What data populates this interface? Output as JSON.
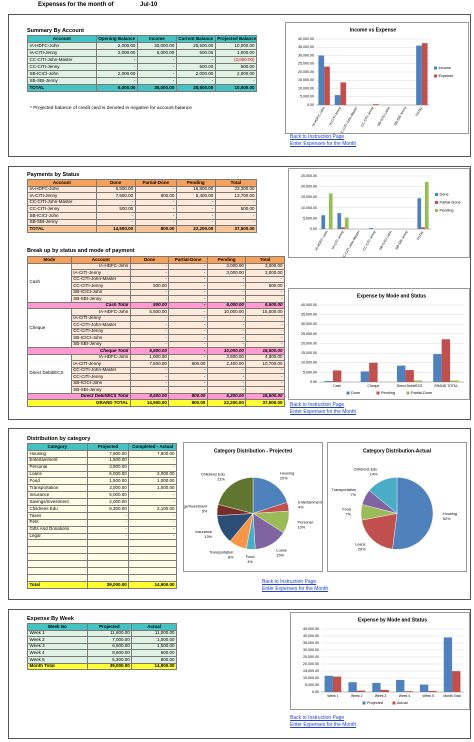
{
  "header": {
    "title": "Expenses for the month of",
    "month": "Jul-10"
  },
  "links": {
    "back": "Back to Instruction Page",
    "enter": "Enter Expenses for the Month"
  },
  "summary": {
    "title": "Summary By Account",
    "columns": [
      "Account",
      "Opening Balance",
      "Income",
      "Current Balance",
      "Projected Balance"
    ],
    "rows": [
      [
        "IA-HDFC-John",
        "2,000.00",
        "30,000.00",
        "25,500.00",
        "10,000.00"
      ],
      [
        "IA-CITI-Jenny",
        "2,000.00",
        "6,000.00",
        "500.00",
        "1,000.00"
      ],
      [
        "CC-CITI-John-Master",
        "-",
        "-",
        "-",
        "(3,000.00)"
      ],
      [
        "CC-CITI-Jenny",
        "-",
        "-",
        "500.00",
        "500.00"
      ],
      [
        "SB-ICICI-John",
        "2,000.00",
        "-",
        "2,000.00",
        "2,000.00"
      ],
      [
        "SB-SBI-Jenny",
        "-",
        "-",
        "-",
        "-"
      ]
    ],
    "total": [
      "TOTAL",
      "6,000.00",
      "36,000.00",
      "28,500.00",
      "10,500.00"
    ],
    "note": "* Projected balance of credit card is denoted in negative for account balance"
  },
  "payments": {
    "title": "Payments by Status",
    "columns": [
      "Account",
      "Done",
      "Partial-Done",
      "Pending",
      "Total"
    ],
    "rows": [
      [
        "IA-HDFC-John",
        "6,500.00",
        "-",
        "16,800.00",
        "23,300.00"
      ],
      [
        "IA-CITI-Jenny",
        "7,500.00",
        "800.00",
        "5,400.00",
        "13,700.00"
      ],
      [
        "CC-CITI-John-Master",
        "-",
        "-",
        "-",
        "-"
      ],
      [
        "CC-CITI-Jenny",
        "500.00",
        "-",
        "-",
        "500.00"
      ],
      [
        "SB-ICICI-John",
        "-",
        "-",
        "-",
        "-"
      ],
      [
        "SB-SBI-Jenny",
        "-",
        "-",
        "-",
        "-"
      ]
    ],
    "total": [
      "TOTAL",
      "14,500.00",
      "800.00",
      "22,200.00",
      "37,500.00"
    ]
  },
  "breakup": {
    "title": "Break up by status and mode of payment",
    "columns": [
      "Mode",
      "Account",
      "Done",
      "Partial-Done",
      "Pending",
      "Total"
    ],
    "groups": [
      {
        "mode": "Cash",
        "rows": [
          [
            "IA-HDFC-John",
            "-",
            "-",
            "3,000.00",
            "3,000.00"
          ],
          [
            "IA-CITI-Jenny",
            "-",
            "-",
            "3,000.00",
            "3,000.00"
          ],
          [
            "CC-CITI-John-Master",
            "-",
            "-",
            "-",
            "-"
          ],
          [
            "CC-CITI-Jenny",
            "500.00",
            "-",
            "-",
            "500.00"
          ],
          [
            "SB-ICICI-John",
            "-",
            "-",
            "-",
            "-"
          ],
          [
            "SB-SBI-Jenny",
            "-",
            "-",
            "-",
            "-"
          ]
        ],
        "total": [
          "Cash Total",
          "500.00",
          "-",
          "6,000.00",
          "6,500.00"
        ]
      },
      {
        "mode": "Cheque",
        "rows": [
          [
            "IA-HDFC-John",
            "5,500.00",
            "-",
            "10,000.00",
            "15,500.00"
          ],
          [
            "IA-CITI-Jenny",
            "-",
            "-",
            "-",
            "-"
          ],
          [
            "CC-CITI-John-Master",
            "-",
            "-",
            "-",
            "-"
          ],
          [
            "CC-CITI-Jenny",
            "-",
            "-",
            "-",
            "-"
          ],
          [
            "SB-ICICI-John",
            "-",
            "-",
            "-",
            "-"
          ],
          [
            "SB-SBI-Jenny",
            "-",
            "-",
            "-",
            "-"
          ]
        ],
        "total": [
          "Cheque Total",
          "5,500.00",
          "-",
          "10,000.00",
          "15,500.00"
        ]
      },
      {
        "mode": "Direct Debit/ECS",
        "rows": [
          [
            "IA-HDFC-John",
            "1,000.00",
            "-",
            "3,800.00",
            "4,800.00"
          ],
          [
            "IA-CITI-Jenny",
            "7,500.00",
            "800.00",
            "2,400.00",
            "10,700.00"
          ],
          [
            "CC-CITI-John-Master",
            "-",
            "-",
            "-",
            "-"
          ],
          [
            "CC-CITI-Jenny",
            "-",
            "-",
            "-",
            "-"
          ],
          [
            "SB-ICICI-John",
            "-",
            "-",
            "-",
            "-"
          ],
          [
            "SB-SBI-Jenny",
            "-",
            "-",
            "-",
            "-"
          ]
        ],
        "total": [
          "Direct Debit/ECS Total",
          "8,500.00",
          "800.00",
          "6,200.00",
          "15,500.00"
        ]
      }
    ],
    "grand": [
      "GRAND TOTAL",
      "14,500.00",
      "800.00",
      "22,200.00",
      "37,500.00"
    ]
  },
  "distribution": {
    "title": "Distribution by category",
    "columns": [
      "Category",
      "Projected",
      "Completed - Actual"
    ],
    "rows": [
      [
        "Housing",
        "7,800.00",
        "7,800.00"
      ],
      [
        "Entertainment",
        "1,500.00",
        "-"
      ],
      [
        "Personal",
        "3,900.00",
        "-"
      ],
      [
        "Loans",
        "6,000.00",
        "3,000.00"
      ],
      [
        "Food",
        "1,500.00",
        "1,000.00"
      ],
      [
        "Transportation",
        "3,000.00",
        "1,000.00"
      ],
      [
        "Insurance",
        "5,000.00",
        "-"
      ],
      [
        "Savings/Investment",
        "2,000.00",
        "-"
      ],
      [
        "Childrens Edu",
        "8,300.00",
        "2,100.00"
      ],
      [
        "Taxes",
        "-",
        "-"
      ],
      [
        "Pets",
        "-",
        "-"
      ],
      [
        "Gifts And Donations",
        "-",
        "-"
      ],
      [
        "Legal",
        "-",
        "-"
      ]
    ],
    "total": [
      "Total",
      "39,000.00",
      "14,900.00"
    ]
  },
  "weekly": {
    "title": "Expense By Week",
    "columns": [
      "Week No",
      "Projected",
      "Actual"
    ],
    "rows": [
      [
        "Week 1",
        "11,600.00",
        "11,000.00"
      ],
      [
        "Week 2",
        "7,000.00",
        "1,000.00"
      ],
      [
        "Week 3",
        "6,500.00",
        "1,500.00"
      ],
      [
        "Week 4",
        "8,600.00",
        "600.00"
      ],
      [
        "Week 5",
        "5,300.00",
        "800.00"
      ]
    ],
    "total": [
      "Month Total",
      "39,000.00",
      "14,900.00"
    ]
  },
  "charts": [
    {
      "type": "bar",
      "title": "Income vs Expense",
      "legend": "right",
      "categories": [
        "IA-HDFC-John",
        "IA-CITI-Jenny",
        "CC-CITI-John-Master",
        "CC-CITI-Jenny",
        "SB-ICICI-John",
        "SB-SBI-Jenny",
        "TOTAL"
      ],
      "series": [
        {
          "name": "Income",
          "color": "#4f81bd",
          "values": [
            30000,
            6000,
            0,
            0,
            0,
            0,
            36000
          ]
        },
        {
          "name": "Expense",
          "color": "#c0504d",
          "values": [
            23300,
            13700,
            0,
            500,
            0,
            0,
            37500
          ]
        }
      ],
      "ylim": [
        0,
        40000
      ],
      "yticks": [
        {
          "value": 0,
          "label": "0.00"
        },
        {
          "value": 5000,
          "label": "5,000.00"
        },
        {
          "value": 10000,
          "label": "10,000.00"
        },
        {
          "value": 15000,
          "label": "15,000.00"
        },
        {
          "value": 20000,
          "label": "20,000.00"
        },
        {
          "value": 25000,
          "label": "25,000.00"
        },
        {
          "value": 30000,
          "label": "30,000.00"
        },
        {
          "value": 35000,
          "label": "35,000.00"
        },
        {
          "value": 40000,
          "label": "40,000.00"
        }
      ]
    },
    {
      "type": "bar",
      "legend": "right",
      "categories": [
        "IA-HDFC-John",
        "IA-CITI-Jenny",
        "CC-CITI-John-Master",
        "CC-CITI-Jenny",
        "SB-ICICI-John",
        "SB-SBI-Jenny",
        "TOTAL"
      ],
      "series": [
        {
          "name": "Done",
          "color": "#4f81bd",
          "values": [
            6500,
            7500,
            0,
            500,
            0,
            0,
            14500
          ]
        },
        {
          "name": "Partial-Done",
          "color": "#c0504d",
          "values": [
            0,
            800,
            0,
            0,
            0,
            0,
            800
          ]
        },
        {
          "name": "Pending",
          "color": "#9bbb59",
          "values": [
            16800,
            5400,
            0,
            0,
            0,
            0,
            22200
          ]
        }
      ],
      "ylim": [
        0,
        25000
      ],
      "yticks": [
        {
          "value": 0,
          "label": "0.00"
        },
        {
          "value": 5000,
          "label": "5,000.00"
        },
        {
          "value": 10000,
          "label": "10,000.00"
        },
        {
          "value": 15000,
          "label": "15,000.00"
        },
        {
          "value": 20000,
          "label": "20,000.00"
        },
        {
          "value": 25000,
          "label": "25,000.00"
        }
      ]
    },
    {
      "type": "bar",
      "title": "Expense by Mode and Status",
      "legend": "bottom",
      "categories": [
        "Cash",
        "Cheque",
        "Direct Debit/ECS",
        "GRAND TOTAL"
      ],
      "series": [
        {
          "name": "Done",
          "color": "#4f81bd",
          "values": [
            500,
            5500,
            8500,
            14500
          ]
        },
        {
          "name": "Pending",
          "color": "#c0504d",
          "values": [
            6000,
            10000,
            6200,
            22200
          ]
        },
        {
          "name": "Partial-Done",
          "color": "#9bbb59",
          "values": [
            0,
            0,
            800,
            800
          ]
        }
      ],
      "ylim": [
        0,
        40000
      ],
      "yticks": [
        {
          "value": 0,
          "label": "0.00"
        },
        {
          "value": 5000,
          "label": "5,000.00"
        },
        {
          "value": 10000,
          "label": "10,000.00"
        },
        {
          "value": 15000,
          "label": "15,000.00"
        },
        {
          "value": 20000,
          "label": "20,000.00"
        },
        {
          "value": 25000,
          "label": "25,000.00"
        },
        {
          "value": 30000,
          "label": "30,000.00"
        },
        {
          "value": 35000,
          "label": "35,000.00"
        },
        {
          "value": 40000,
          "label": "40,000.00"
        }
      ]
    },
    {
      "type": "pie",
      "title": "Category Distribution - Projected",
      "categories": [
        "Housing",
        "Entertainment",
        "Personal",
        "Loans",
        "Food",
        "Transportation",
        "Insurance",
        "Savings/Investment",
        "Childrens Edu"
      ],
      "values": [
        20,
        4,
        10,
        15,
        4,
        8,
        13,
        5,
        21
      ],
      "value_labels": [
        "20%",
        "4%",
        "10%",
        "15%",
        "4%",
        "8%",
        "13%",
        "5%",
        "21%"
      ],
      "colors": [
        "#4f81bd",
        "#c0504d",
        "#9bbb59",
        "#8064a2",
        "#4bacc6",
        "#f79646",
        "#2c4d75",
        "#772c2a",
        "#5f7530"
      ]
    },
    {
      "type": "pie",
      "title": "Category Distribution-Actual",
      "categories": [
        "Housing",
        "Loans",
        "Food",
        "Transportation",
        "Childrens Edu"
      ],
      "values": [
        52,
        20,
        7,
        7,
        14
      ],
      "value_labels": [
        "52%",
        "20%",
        "7%",
        "7%",
        "14%"
      ],
      "colors": [
        "#4f81bd",
        "#c0504d",
        "#9bbb59",
        "#8064a2",
        "#4bacc6"
      ]
    },
    {
      "type": "bar",
      "title": "Expense by Mode and Status",
      "legend": "bottom",
      "categories": [
        "Week 1",
        "Week 2",
        "Week 3",
        "Week 4",
        "Week 5",
        "Month Total"
      ],
      "series": [
        {
          "name": "Projected",
          "color": "#4f81bd",
          "values": [
            11600,
            7000,
            6500,
            8600,
            5300,
            39000
          ]
        },
        {
          "name": "Actual",
          "color": "#c0504d",
          "values": [
            11000,
            1000,
            1500,
            600,
            800,
            14900
          ]
        }
      ],
      "ylim": [
        0,
        45000
      ],
      "yticks": [
        {
          "value": 0,
          "label": "0.00"
        },
        {
          "value": 5000,
          "label": "5,000.00"
        },
        {
          "value": 10000,
          "label": "10,000.00"
        },
        {
          "value": 15000,
          "label": "15,000.00"
        },
        {
          "value": 20000,
          "label": "20,000.00"
        },
        {
          "value": 25000,
          "label": "25,000.00"
        },
        {
          "value": 30000,
          "label": "30,000.00"
        },
        {
          "value": 35000,
          "label": "35,000.00"
        },
        {
          "value": 40000,
          "label": "40,000.00"
        },
        {
          "value": 45000,
          "label": "45,000.00"
        }
      ]
    }
  ]
}
